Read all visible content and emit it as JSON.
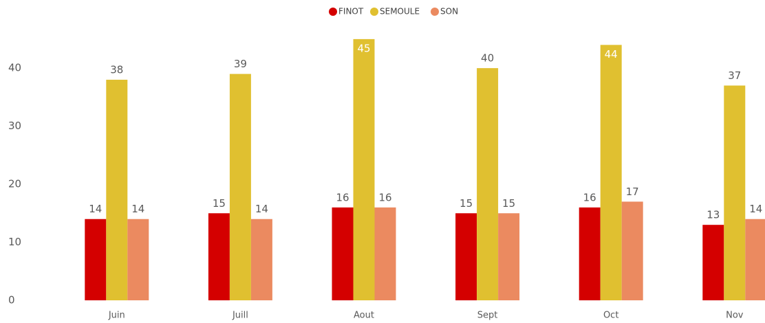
{
  "chart_data": {
    "type": "bar",
    "categories": [
      "Juin",
      "Juill",
      "Aout",
      "Sept",
      "Oct",
      "Nov"
    ],
    "series": [
      {
        "name": "FINOT",
        "color": "#d40000",
        "values": [
          14,
          15,
          16,
          15,
          16,
          13
        ]
      },
      {
        "name": "SEMOULE",
        "color": "#e0c030",
        "values": [
          38,
          39,
          45,
          40,
          44,
          37
        ]
      },
      {
        "name": "SON",
        "color": "#eb8a60",
        "values": [
          14,
          14,
          16,
          15,
          17,
          14
        ]
      }
    ],
    "ylim": [
      0,
      47
    ],
    "yticks": [
      0,
      10,
      20,
      30,
      40
    ],
    "grid": false,
    "legend": "top"
  }
}
